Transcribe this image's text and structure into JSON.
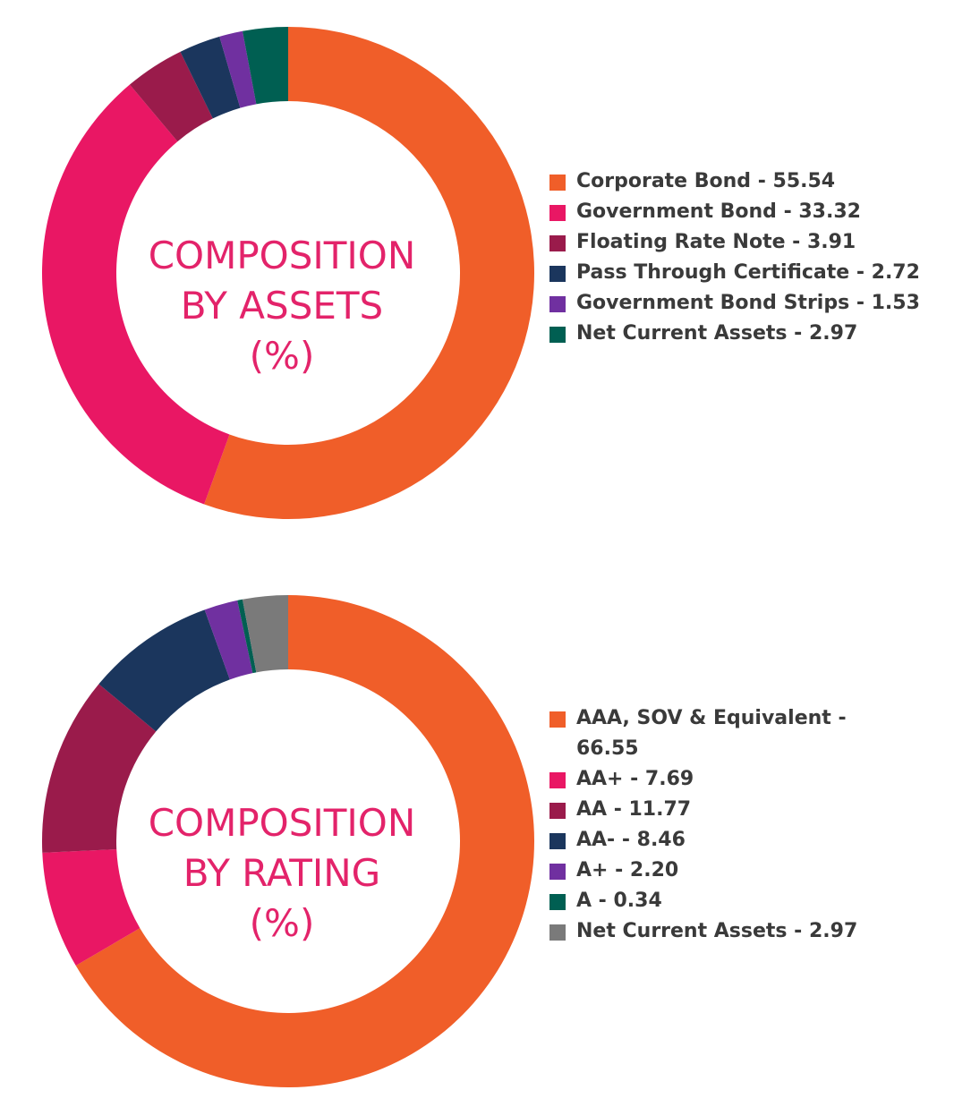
{
  "chart_data": [
    {
      "type": "pie",
      "style": "donut",
      "title_lines": [
        "COMPOSITION",
        "BY ASSETS",
        "(%)"
      ],
      "slices": [
        {
          "label": "Corporate Bond - 55.54",
          "value": 55.54,
          "color": "#f05e29"
        },
        {
          "label": "Government Bond - 33.32",
          "value": 33.32,
          "color": "#e91764"
        },
        {
          "label": "Floating Rate Note - 3.91",
          "value": 3.91,
          "color": "#9a1b4b"
        },
        {
          "label": "Pass Through Certificate - 2.72",
          "value": 2.72,
          "color": "#1b365d"
        },
        {
          "label": "Government Bond Strips - 1.53",
          "value": 1.53,
          "color": "#7030a0"
        },
        {
          "label": "Net Current Assets - 2.97",
          "value": 2.97,
          "color": "#005f52"
        }
      ]
    },
    {
      "type": "pie",
      "style": "donut",
      "title_lines": [
        "COMPOSITION",
        "BY RATING",
        "(%)"
      ],
      "slices": [
        {
          "label": "AAA, SOV & Equivalent - 66.55",
          "value": 66.55,
          "color": "#f05e29"
        },
        {
          "label": "AA+ - 7.69",
          "value": 7.69,
          "color": "#e91764"
        },
        {
          "label": "AA - 11.77",
          "value": 11.77,
          "color": "#9a1b4b"
        },
        {
          "label": "AA- - 8.46",
          "value": 8.46,
          "color": "#1b365d"
        },
        {
          "label": "A+ - 2.20",
          "value": 2.2,
          "color": "#7030a0"
        },
        {
          "label": "A - 0.34",
          "value": 0.34,
          "color": "#005f52"
        },
        {
          "label": "Net Current Assets - 2.97",
          "value": 2.97,
          "color": "#7a7a7a"
        }
      ]
    }
  ]
}
